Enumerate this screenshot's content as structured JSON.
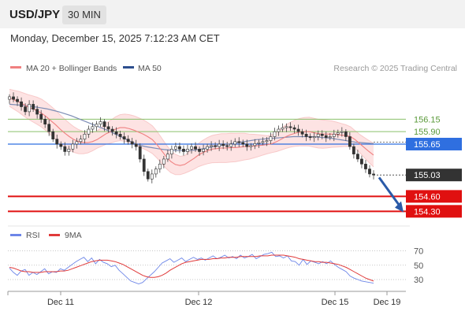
{
  "header": {
    "pair": "USD/JPY",
    "timeframe": "30 MIN",
    "timestamp": "Monday, December 15, 2025 7:12:23 AM CET"
  },
  "colors": {
    "ma20": "#f08080",
    "ma50": "#2d4e8e",
    "bollinger_fill": "#fde3e3",
    "resistance": "#8ac06a",
    "pivot": "#2f6fe0",
    "support": "#e01010",
    "last_price": "#333333",
    "arrow": "#2a5aa8",
    "rsi": "#6d86e8",
    "rsi_ma": "#e03a3a"
  },
  "chart_data": [
    {
      "type": "candlestick",
      "title": "USD/JPY 30 MIN",
      "legend": [
        {
          "name": "MA 20 + Bollinger Bands",
          "color": "#f08080"
        },
        {
          "name": "MA 50",
          "color": "#2d4e8e"
        }
      ],
      "legend_position": "top-left",
      "watermark": "Research © 2025 Trading Central",
      "x_ticks": [
        "Dec 11",
        "Dec 12",
        "Dec 15",
        "Dec 19"
      ],
      "ylim": [
        154.1,
        156.82
      ],
      "price_levels": [
        {
          "label": "156.15",
          "value": 156.15,
          "kind": "resistance"
        },
        {
          "label": "155.90",
          "value": 155.9,
          "kind": "resistance"
        },
        {
          "label": "155.65",
          "value": 155.65,
          "kind": "pivot"
        },
        {
          "label": "155.03",
          "value": 155.03,
          "kind": "last"
        },
        {
          "label": "154.60",
          "value": 154.6,
          "kind": "support"
        },
        {
          "label": "154.30",
          "value": 154.3,
          "kind": "support"
        }
      ],
      "close_series": [
        156.6,
        156.55,
        156.5,
        156.4,
        156.3,
        156.45,
        156.35,
        156.25,
        156.15,
        156.05,
        155.9,
        155.75,
        155.65,
        155.6,
        155.5,
        155.55,
        155.65,
        155.7,
        155.75,
        155.85,
        155.95,
        156.0,
        156.05,
        156.1,
        156.0,
        155.95,
        155.9,
        155.85,
        155.8,
        155.75,
        155.7,
        155.65,
        155.6,
        155.35,
        155.1,
        154.95,
        155.05,
        155.15,
        155.25,
        155.35,
        155.45,
        155.55,
        155.6,
        155.55,
        155.5,
        155.55,
        155.6,
        155.55,
        155.5,
        155.55,
        155.6,
        155.62,
        155.6,
        155.65,
        155.62,
        155.6,
        155.65,
        155.7,
        155.68,
        155.65,
        155.6,
        155.62,
        155.66,
        155.68,
        155.7,
        155.72,
        155.8,
        155.9,
        155.95,
        155.98,
        156.0,
        155.98,
        155.95,
        155.9,
        155.85,
        155.8,
        155.78,
        155.8,
        155.85,
        155.82,
        155.78,
        155.8,
        155.85,
        155.88,
        155.9,
        155.8,
        155.6,
        155.45,
        155.35,
        155.25,
        155.15,
        155.05,
        155.03
      ],
      "ma20": [
        156.58,
        156.54,
        156.5,
        156.45,
        156.4,
        156.36,
        156.32,
        156.27,
        156.2,
        156.12,
        156.04,
        155.95,
        155.87,
        155.8,
        155.74,
        155.7,
        155.68,
        155.68,
        155.7,
        155.74,
        155.8,
        155.86,
        155.9,
        155.95,
        155.98,
        155.98,
        155.96,
        155.93,
        155.89,
        155.85,
        155.8,
        155.74,
        155.64,
        155.52,
        155.4,
        155.3,
        155.24,
        155.22,
        155.24,
        155.3,
        155.36,
        155.43,
        155.48,
        155.52,
        155.55,
        155.56,
        155.57,
        155.57,
        155.58,
        155.58,
        155.59,
        155.6,
        155.6,
        155.61,
        155.62,
        155.63,
        155.64,
        155.66,
        155.7,
        155.75,
        155.8,
        155.84,
        155.87,
        155.89,
        155.9,
        155.9,
        155.88,
        155.86,
        155.85,
        155.85,
        155.85,
        155.84,
        155.83,
        155.82,
        155.8,
        155.74,
        155.66,
        155.58,
        155.5,
        155.43
      ],
      "ma50": [
        156.45,
        156.44,
        156.43,
        156.42,
        156.4,
        156.38,
        156.36,
        156.33,
        156.3,
        156.26,
        156.22,
        156.17,
        156.12,
        156.07,
        156.02,
        155.97,
        155.92,
        155.86,
        155.8,
        155.74,
        155.68,
        155.63,
        155.6,
        155.58,
        155.56,
        155.54,
        155.53,
        155.52,
        155.52,
        155.52,
        155.53,
        155.55,
        155.57,
        155.6,
        155.62,
        155.64,
        155.66,
        155.68,
        155.7,
        155.72,
        155.74,
        155.75,
        155.76,
        155.77,
        155.78,
        155.79,
        155.8,
        155.8,
        155.8,
        155.8,
        155.79,
        155.78,
        155.77,
        155.75,
        155.73,
        155.71,
        155.69,
        155.68,
        155.67,
        155.66
      ]
    },
    {
      "type": "line",
      "title": "RSI",
      "legend": [
        {
          "name": "RSI",
          "color": "#6d86e8"
        },
        {
          "name": "9MA",
          "color": "#e03a3a"
        }
      ],
      "legend_position": "top-left",
      "ylim": [
        18,
        76
      ],
      "y_ticks": [
        70,
        50,
        30
      ],
      "grid": "dotted",
      "series": [
        {
          "name": "RSI",
          "values": [
            46,
            40,
            36,
            42,
            44,
            36,
            40,
            37,
            41,
            45,
            38,
            41,
            40,
            45,
            43,
            47,
            51,
            55,
            58,
            61,
            55,
            60,
            52,
            58,
            54,
            52,
            48,
            50,
            43,
            38,
            33,
            28,
            26,
            24,
            26,
            31,
            36,
            41,
            47,
            53,
            56,
            59,
            54,
            57,
            60,
            55,
            58,
            61,
            58,
            60,
            57,
            60,
            63,
            59,
            61,
            64,
            60,
            62,
            59,
            64,
            60,
            62,
            65,
            59,
            62,
            65,
            66,
            68,
            62,
            63,
            60,
            63,
            56,
            55,
            50,
            58,
            51,
            56,
            54,
            52,
            55,
            52,
            56,
            51,
            47,
            44,
            41,
            35,
            32,
            30,
            28,
            27,
            26,
            25
          ]
        },
        {
          "name": "9MA",
          "values": [
            47,
            46,
            44,
            42,
            41,
            41,
            40,
            40,
            40,
            41,
            41,
            41,
            41,
            42,
            42,
            43,
            45,
            47,
            49,
            51,
            53,
            55,
            56,
            57,
            57,
            57,
            56,
            55,
            53,
            51,
            48,
            45,
            42,
            39,
            36,
            34,
            33,
            33,
            34,
            36,
            39,
            43,
            46,
            49,
            52,
            54,
            55,
            56,
            57,
            58,
            58,
            58,
            59,
            59,
            60,
            60,
            61,
            61,
            61,
            62,
            62,
            62,
            62,
            62,
            63,
            63,
            63,
            64,
            64,
            64,
            64,
            63,
            62,
            61,
            59,
            58,
            57,
            56,
            55,
            55,
            54,
            54,
            53,
            52,
            51,
            49,
            47,
            44,
            41,
            38,
            35,
            32,
            30,
            28
          ]
        }
      ],
      "x_ticks": [
        "Dec 11",
        "Dec 12",
        "Dec 15",
        "Dec 19"
      ]
    }
  ]
}
